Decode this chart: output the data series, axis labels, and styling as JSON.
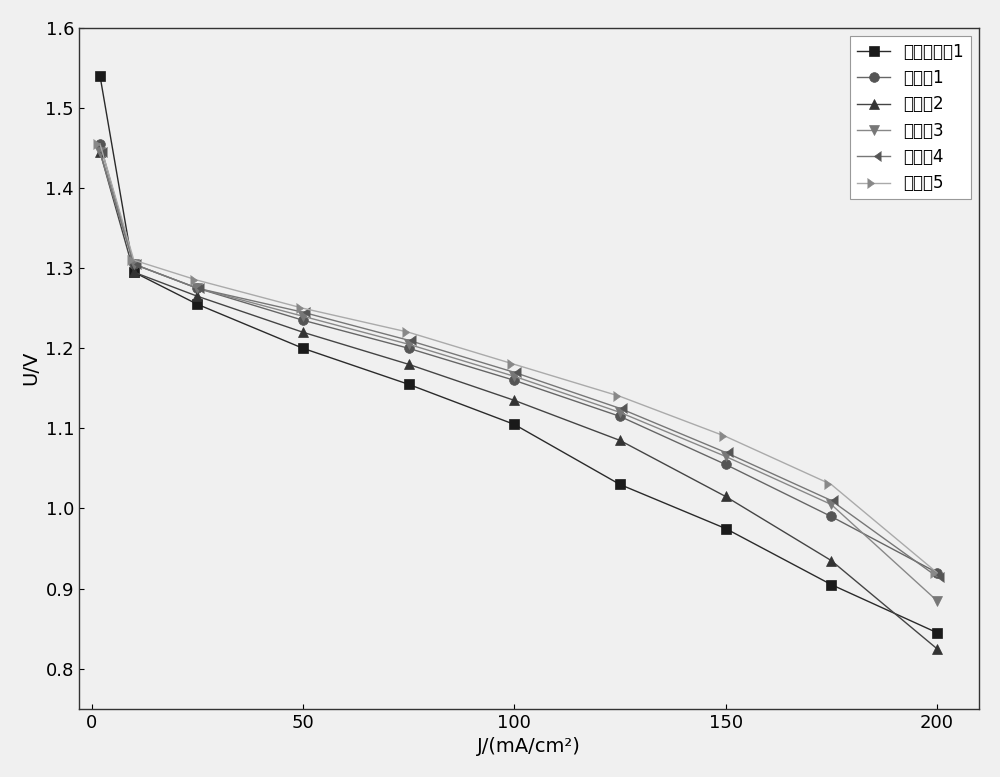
{
  "series": [
    {
      "label": "对比测试例1",
      "color": "#2a2a2a",
      "marker": "s",
      "markercolor": "#1a1a1a",
      "linestyle": "-",
      "x": [
        2,
        10,
        25,
        50,
        75,
        100,
        125,
        150,
        175,
        200
      ],
      "y": [
        1.54,
        1.295,
        1.255,
        1.2,
        1.155,
        1.105,
        1.03,
        0.975,
        0.905,
        0.845
      ]
    },
    {
      "label": "测试例1",
      "color": "#666666",
      "marker": "o",
      "markercolor": "#555555",
      "linestyle": "-",
      "x": [
        2,
        10,
        25,
        50,
        75,
        100,
        125,
        150,
        175,
        200
      ],
      "y": [
        1.455,
        1.305,
        1.275,
        1.235,
        1.2,
        1.16,
        1.115,
        1.055,
        0.99,
        0.92
      ]
    },
    {
      "label": "测试例2",
      "color": "#444444",
      "marker": "^",
      "markercolor": "#333333",
      "linestyle": "-",
      "x": [
        2,
        10,
        25,
        50,
        75,
        100,
        125,
        150,
        175,
        200
      ],
      "y": [
        1.445,
        1.295,
        1.265,
        1.22,
        1.18,
        1.135,
        1.085,
        1.015,
        0.935,
        0.825
      ]
    },
    {
      "label": "测试例3",
      "color": "#888888",
      "marker": "v",
      "markercolor": "#777777",
      "linestyle": "-",
      "x": [
        2,
        10,
        25,
        50,
        75,
        100,
        125,
        150,
        175,
        200
      ],
      "y": [
        1.445,
        1.305,
        1.275,
        1.24,
        1.205,
        1.165,
        1.12,
        1.065,
        1.005,
        0.885
      ]
    },
    {
      "label": "测试例4",
      "color": "#777777",
      "marker": 4,
      "markercolor": "#555555",
      "linestyle": "-",
      "x": [
        2,
        10,
        25,
        50,
        75,
        100,
        125,
        150,
        175,
        200
      ],
      "y": [
        1.445,
        1.305,
        1.275,
        1.245,
        1.21,
        1.17,
        1.125,
        1.07,
        1.01,
        0.915
      ]
    },
    {
      "label": "测试例5",
      "color": "#aaaaaa",
      "marker": 5,
      "markercolor": "#888888",
      "linestyle": "-",
      "x": [
        2,
        10,
        25,
        50,
        75,
        100,
        125,
        150,
        175,
        200
      ],
      "y": [
        1.455,
        1.31,
        1.285,
        1.25,
        1.22,
        1.18,
        1.14,
        1.09,
        1.03,
        0.92
      ]
    }
  ],
  "xlabel": "J/(mA/cm²)",
  "ylabel": "U/V",
  "xlim": [
    -3,
    210
  ],
  "ylim": [
    0.75,
    1.6
  ],
  "yticks": [
    0.8,
    0.9,
    1.0,
    1.1,
    1.2,
    1.3,
    1.4,
    1.5,
    1.6
  ],
  "xticks": [
    0,
    50,
    100,
    150,
    200
  ],
  "legend_loc": "upper right",
  "background_color": "#f0f0f0",
  "markersize": 7,
  "linewidth": 1.0,
  "fontsize_label": 14,
  "fontsize_tick": 13,
  "fontsize_legend": 12
}
